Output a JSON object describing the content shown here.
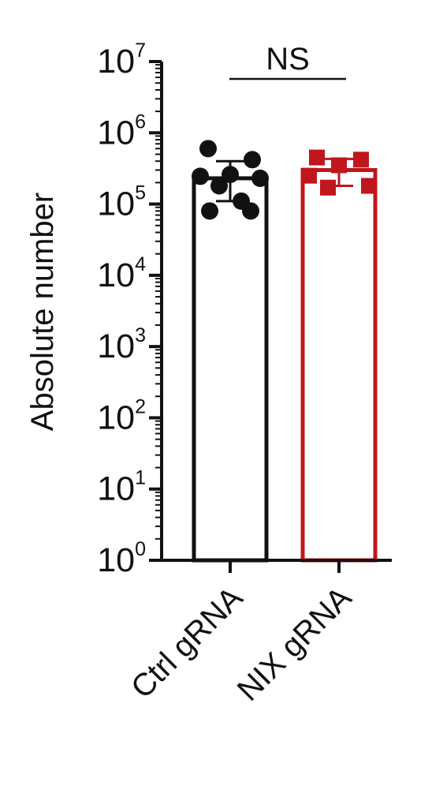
{
  "chart_data": {
    "type": "bar",
    "scale": "log",
    "ylabel": "Absolute number",
    "ylim": [
      1,
      10000000
    ],
    "y_ticks": [
      {
        "base": "10",
        "exp": "0",
        "value": 1
      },
      {
        "base": "10",
        "exp": "1",
        "value": 10
      },
      {
        "base": "10",
        "exp": "2",
        "value": 100
      },
      {
        "base": "10",
        "exp": "3",
        "value": 1000
      },
      {
        "base": "10",
        "exp": "4",
        "value": 10000
      },
      {
        "base": "10",
        "exp": "5",
        "value": 100000
      },
      {
        "base": "10",
        "exp": "6",
        "value": 1000000
      },
      {
        "base": "10",
        "exp": "7",
        "value": 10000000
      }
    ],
    "categories": [
      "Ctrl gRNA",
      "NIX gRNA"
    ],
    "bars": [
      {
        "label": "Ctrl gRNA",
        "mean": 230000,
        "sd_low": 110000,
        "sd_high": 400000,
        "color": "#111111",
        "marker": "circle",
        "points": [
          600000,
          420000,
          260000,
          245000,
          230000,
          180000,
          110000,
          80000,
          80000
        ]
      },
      {
        "label": "NIX gRNA",
        "mean": 300000,
        "sd_low": 180000,
        "sd_high": 430000,
        "color": "#c0161e",
        "marker": "square",
        "points": [
          450000,
          420000,
          350000,
          250000,
          180000,
          170000
        ]
      }
    ],
    "significance": {
      "label": "NS",
      "between": [
        "Ctrl gRNA",
        "NIX gRNA"
      ]
    },
    "grid": false,
    "legend": "none"
  }
}
